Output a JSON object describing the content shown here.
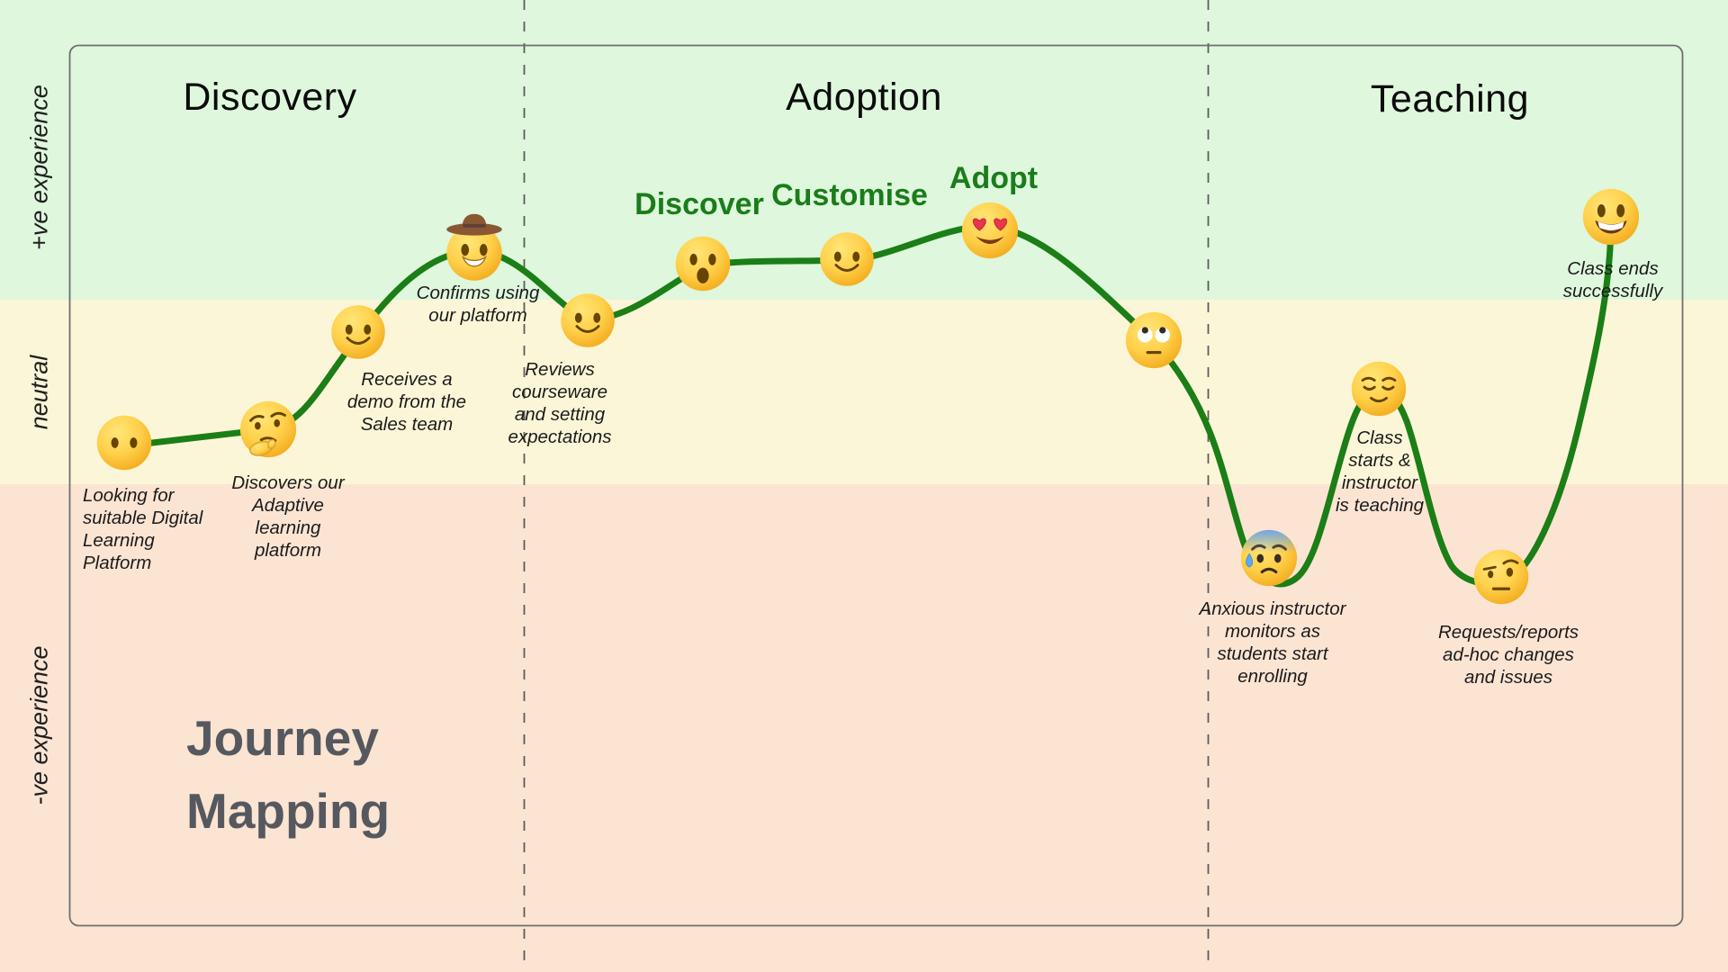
{
  "title": {
    "lines": [
      "Journey",
      "Mapping"
    ]
  },
  "axis_labels": {
    "positive": "+ve experience",
    "neutral": "neutral",
    "negative": "-ve experience"
  },
  "phases": [
    "Discovery",
    "Adoption",
    "Teaching"
  ],
  "colors": {
    "band_positive": "#def7dd",
    "band_neutral": "#fcf6d8",
    "band_negative": "#fce4d3",
    "journey_line": "#1b7e16",
    "milestone_label": "#1a7d1a",
    "divider": "#5c5c5c",
    "frame_border": "#6f6f6f"
  },
  "points": [
    {
      "emoji": "face-without-mouth",
      "caption": "Looking for\nsuitable Digital\nLearning\nPlatform"
    },
    {
      "emoji": "thinking-face",
      "caption": "Discovers our\nAdaptive\nlearning\nplatform"
    },
    {
      "emoji": "slightly-smiling-face",
      "caption": "Receives a\ndemo from the\nSales team"
    },
    {
      "emoji": "cowboy-hat-face",
      "caption": "Confirms using\nour platform"
    },
    {
      "emoji": "slightly-smiling-face",
      "caption": "Reviews\ncourseware\nand setting\nexpectations"
    },
    {
      "emoji": "face-with-open-mouth",
      "caption": "",
      "milestone": "Discover"
    },
    {
      "emoji": "slightly-smiling-face",
      "caption": "",
      "milestone": "Customise"
    },
    {
      "emoji": "smiling-face-with-heart-eyes",
      "caption": "",
      "milestone": "Adopt"
    },
    {
      "emoji": "face-with-rolling-eyes",
      "caption": ""
    },
    {
      "emoji": "anxious-face-with-sweat",
      "caption": "Anxious instructor\nmonitors as\nstudents start\nenrolling"
    },
    {
      "emoji": "relieved-face",
      "caption": "Class\nstarts &\ninstructor\nis teaching"
    },
    {
      "emoji": "face-with-raised-eyebrow",
      "caption": "Requests/reports\nad-hoc changes\nand issues"
    },
    {
      "emoji": "grinning-face-with-big-eyes",
      "caption": "Class ends\nsuccessfully"
    }
  ]
}
